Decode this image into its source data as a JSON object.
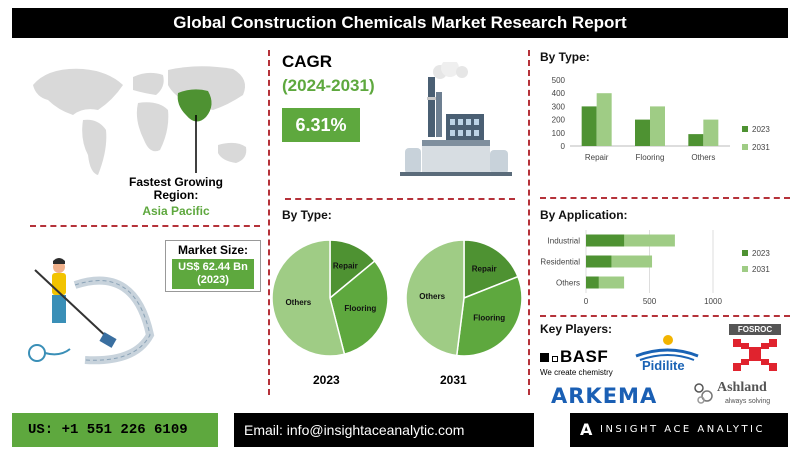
{
  "header": {
    "title": "Global Construction Chemicals Market Research Report"
  },
  "region": {
    "label": "Fastest Growing Region:",
    "value": "Asia Pacific"
  },
  "market_size": {
    "label": "Market Size:",
    "value": "US$ 62.44 Bn",
    "year": "(2023)"
  },
  "cagr": {
    "label": "CAGR",
    "period": "(2024-2031)",
    "value": "6.31%"
  },
  "pies": {
    "title": "By Type:",
    "labels": [
      "Repair",
      "Flooring",
      "Others"
    ],
    "year_left": "2023",
    "year_right": "2031"
  },
  "key_players": {
    "title": "Key Players:",
    "names": [
      "BASF",
      "We create chemistry",
      "Pidilite",
      "FOSROC",
      "ARKEMA",
      "Ashland",
      "always solving"
    ]
  },
  "footer": {
    "phone": "US: +1 551 226 6109",
    "email": "Email: info@insightaceanalytic.com",
    "brand": "INSIGHT ACE ANALYTIC"
  },
  "colors": {
    "dark_green": "#4e9232",
    "light_green": "#9fcc85",
    "accent_red": "#b5323a",
    "highlight_green": "#5ea83e"
  },
  "chart_data": [
    {
      "type": "bar",
      "title": "By Type:",
      "categories": [
        "Repair",
        "Flooring",
        "Others"
      ],
      "series": [
        {
          "name": "2023",
          "values": [
            300,
            200,
            90
          ]
        },
        {
          "name": "2031",
          "values": [
            400,
            300,
            200
          ]
        }
      ],
      "ylim": [
        0,
        500
      ],
      "yticks": [
        "0",
        "100",
        "200",
        "300",
        "400",
        "500"
      ],
      "legend": "right"
    },
    {
      "type": "bar",
      "orientation": "horizontal",
      "title": "By Application:",
      "categories": [
        "Industrial",
        "Residential",
        "Others"
      ],
      "series": [
        {
          "name": "2023",
          "values": [
            300,
            200,
            100
          ]
        },
        {
          "name": "2031",
          "values": [
            700,
            520,
            300
          ]
        }
      ],
      "xlim": [
        0,
        1000
      ],
      "xticks": [
        "0",
        "500",
        "1000"
      ],
      "legend": "right"
    },
    {
      "type": "pie",
      "year": "2023",
      "labels": [
        "Repair",
        "Flooring",
        "Others"
      ],
      "values": [
        14,
        32,
        54
      ]
    },
    {
      "type": "pie",
      "year": "2031",
      "labels": [
        "Repair",
        "Flooring",
        "Others"
      ],
      "values": [
        19,
        33,
        48
      ]
    }
  ]
}
